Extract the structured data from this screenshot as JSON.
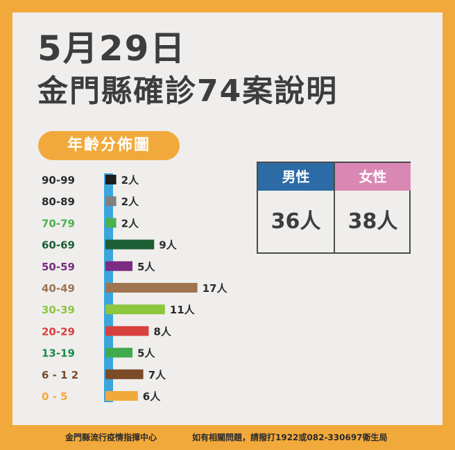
{
  "header": {
    "date_title": "5月29日",
    "main_title": "金門縣確診74案說明"
  },
  "section_label": "年齡分佈圖",
  "gender": {
    "male_label": "男性",
    "female_label": "女性",
    "male_value": "36人",
    "female_value": "38人",
    "colors": {
      "male": "#2C6BA5",
      "female": "#D988B3"
    }
  },
  "chart_data": {
    "type": "bar",
    "orientation": "horizontal",
    "title": "年齡分佈圖",
    "unit": "人",
    "categories": [
      "90-99",
      "80-89",
      "70-79",
      "60-69",
      "50-59",
      "40-49",
      "30-39",
      "20-29",
      "13-19",
      "6 - 1 2",
      "0  -  5"
    ],
    "values": [
      2,
      2,
      2,
      9,
      5,
      17,
      11,
      8,
      5,
      7,
      6
    ],
    "value_labels": [
      "2人",
      "2人",
      "2人",
      "9人",
      "5人",
      "17人",
      "11人",
      "8人",
      "5人",
      "7人",
      "6人"
    ],
    "colors": [
      "#1E1E1E",
      "#7F7F7F",
      "#4CB04F",
      "#1D5E35",
      "#7A2C82",
      "#9E7451",
      "#8DC63F",
      "#D8403E",
      "#3FAA4E",
      "#7B4B2A",
      "#F2A93B"
    ],
    "label_colors": [
      "#2B2B2B",
      "#2B2B2B",
      "#4CB04F",
      "#1D5E35",
      "#7A2C82",
      "#9E7451",
      "#8DC63F",
      "#D8403E",
      "#1E8A4A",
      "#7B4B2A",
      "#F2A93B"
    ],
    "axis_color": "#3BA6DE",
    "grid": false
  },
  "footer": {
    "left": "金門縣流行疫情指揮中心",
    "right": "如有相關問題，請撥打1922或082-330697衛生局"
  }
}
